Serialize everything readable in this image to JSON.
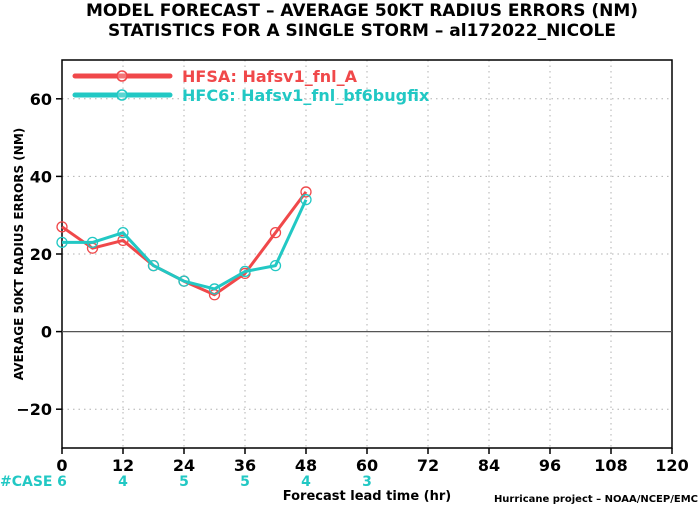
{
  "chart_data": {
    "type": "line",
    "title_line1": "MODEL FORECAST – AVERAGE 50KT RADIUS ERRORS (NM)",
    "title_line2": "STATISTICS FOR A SINGLE STORM – al172022_NICOLE",
    "xlabel": "Forecast lead time (hr)",
    "ylabel": "AVERAGE 50KT RADIUS ERRORS (NM)",
    "credit": "Hurricane project – NOAA/NCEP/EMC",
    "xlim": [
      0,
      120
    ],
    "ylim": [
      -30,
      70
    ],
    "x_ticks": [
      0,
      12,
      24,
      36,
      48,
      60,
      72,
      84,
      96,
      108,
      120
    ],
    "y_ticks": [
      -20,
      0,
      20,
      40,
      60
    ],
    "grid": true,
    "legend_position": "top-left",
    "series": [
      {
        "name": "HFSA: Hafsv1_fnl_A",
        "color": "#f0484a",
        "x": [
          0,
          6,
          12,
          18,
          24,
          30,
          36,
          42,
          48
        ],
        "y": [
          27,
          21.5,
          23.5,
          17,
          13,
          9.5,
          15,
          25.5,
          36
        ]
      },
      {
        "name": "HFC6: Hafsv1_fnl_bf6bugfix",
        "color": "#22c8c4",
        "x": [
          0,
          6,
          12,
          18,
          24,
          30,
          36,
          42,
          48
        ],
        "y": [
          23,
          23,
          25.5,
          17,
          13,
          11,
          15.5,
          17,
          34
        ]
      }
    ],
    "case_label": "#CASE",
    "case_counts": [
      {
        "x": 0,
        "n": "6"
      },
      {
        "x": 12,
        "n": "4"
      },
      {
        "x": 24,
        "n": "5"
      },
      {
        "x": 36,
        "n": "5"
      },
      {
        "x": 48,
        "n": "4"
      },
      {
        "x": 60,
        "n": "3"
      }
    ],
    "case_color": "#22c8c4"
  }
}
